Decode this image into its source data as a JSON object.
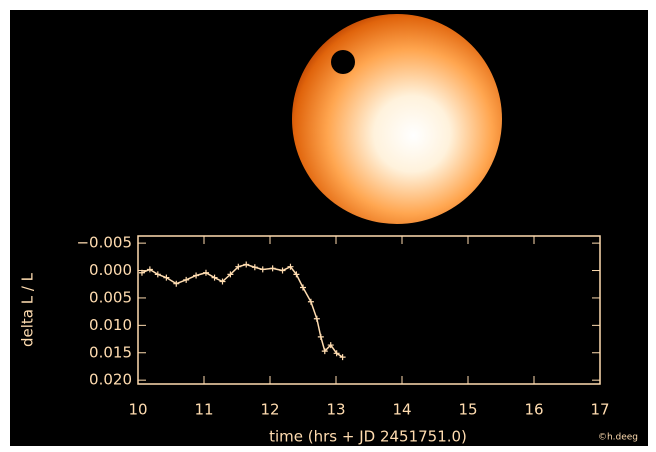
{
  "chart_data": {
    "type": "line",
    "xlabel": "time (hrs + JD 2451751.0)",
    "ylabel": "delta L / L",
    "credit": "©h.deeg",
    "x": [
      10.06,
      10.18,
      10.3,
      10.43,
      10.58,
      10.73,
      10.88,
      11.03,
      11.16,
      11.28,
      11.4,
      11.52,
      11.64,
      11.77,
      11.89,
      12.04,
      12.19,
      12.31,
      12.4,
      12.5,
      12.62,
      12.71,
      12.77,
      12.83,
      12.92,
      13.01,
      13.1
    ],
    "values": [
      0.0004,
      -0.0002,
      0.0007,
      0.0013,
      0.0024,
      0.0017,
      0.0009,
      0.0004,
      0.0013,
      0.002,
      0.0007,
      -0.0007,
      -0.0011,
      -0.0006,
      -0.0002,
      -0.0004,
      0.0,
      -0.0007,
      0.0007,
      0.0031,
      0.0057,
      0.0088,
      0.0121,
      0.0147,
      0.0136,
      0.0151,
      0.0158
    ],
    "color": "#ffdcb0",
    "xlim": [
      10,
      17
    ],
    "xticks": [
      10,
      11,
      12,
      13,
      14,
      15,
      16,
      17
    ],
    "ylim": [
      -0.0063,
      0.0207
    ],
    "y_inverted": true,
    "yticks": [
      {
        "value": -0.005,
        "label": "−0.005"
      },
      {
        "value": 0,
        "label": "0.000"
      },
      {
        "value": 0.005,
        "label": "0.005"
      },
      {
        "value": 0.01,
        "label": "0.010"
      },
      {
        "value": 0.015,
        "label": "0.015"
      },
      {
        "value": 0.02,
        "label": "0.020"
      }
    ]
  }
}
